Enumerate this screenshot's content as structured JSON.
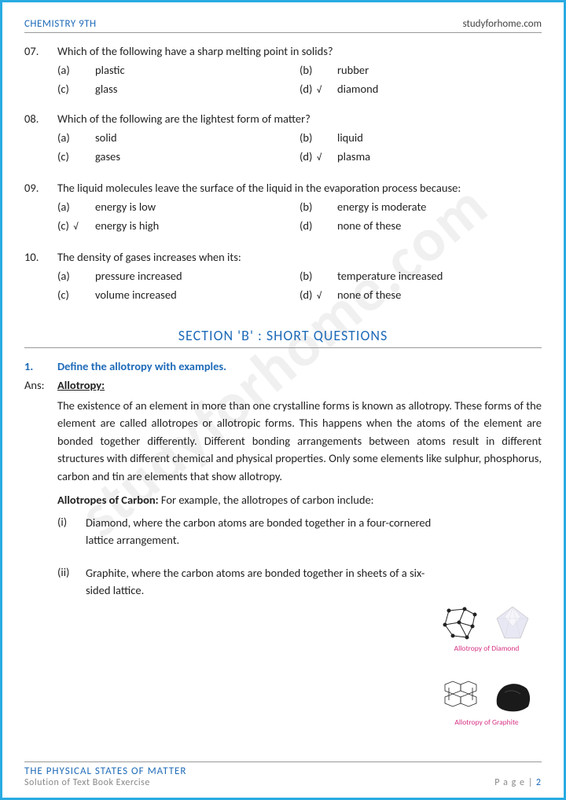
{
  "colors": {
    "accent": "#1f6bb8",
    "border": "#29abe2",
    "text": "#222222",
    "muted": "#888888",
    "caption": "#d63384",
    "rule": "#999999",
    "watermark": "rgba(128,128,128,0.12)"
  },
  "typography": {
    "body_size_pt": 11,
    "section_title_size_pt": 14,
    "watermark_size_pt": 60
  },
  "header": {
    "left": "CHEMISTRY 9TH",
    "right": "studyforhome.com"
  },
  "watermark": "studyforhome.com",
  "mcqs": [
    {
      "num": "07.",
      "q": "Which of the following have a sharp melting point in solids?",
      "opts": [
        {
          "l": "(a)",
          "t": "plastic",
          "c": false
        },
        {
          "l": "(b)",
          "t": "rubber",
          "c": false
        },
        {
          "l": "(c)",
          "t": "glass",
          "c": false
        },
        {
          "l": "(d)",
          "t": "diamond",
          "c": true
        }
      ]
    },
    {
      "num": "08.",
      "q": "Which of the following are the lightest form of matter?",
      "opts": [
        {
          "l": "(a)",
          "t": "solid",
          "c": false
        },
        {
          "l": "(b)",
          "t": "liquid",
          "c": false
        },
        {
          "l": "(c)",
          "t": "gases",
          "c": false
        },
        {
          "l": "(d)",
          "t": "plasma",
          "c": true
        }
      ]
    },
    {
      "num": "09.",
      "q": "The liquid molecules leave the surface of the liquid in the evaporation process because:",
      "opts": [
        {
          "l": "(a)",
          "t": "energy is low",
          "c": false
        },
        {
          "l": "(b)",
          "t": "energy is moderate",
          "c": false
        },
        {
          "l": "(c)",
          "t": "energy is high",
          "c": true
        },
        {
          "l": "(d)",
          "t": "none of these",
          "c": false
        }
      ]
    },
    {
      "num": "10.",
      "q": "The density of gases increases when its:",
      "opts": [
        {
          "l": "(a)",
          "t": "pressure increased",
          "c": false
        },
        {
          "l": "(b)",
          "t": "temperature increased",
          "c": false
        },
        {
          "l": "(c)",
          "t": "volume increased",
          "c": false
        },
        {
          "l": "(d)",
          "t": "none of these",
          "c": true
        }
      ]
    }
  ],
  "section_b_title": "SECTION 'B' : SHORT QUESTIONS",
  "short_q": {
    "num": "1.",
    "title": "Define the allotropy with examples.",
    "ans_label": "Ans:",
    "heading": "Allotropy:",
    "body": "The existence of an element in more than one crystalline forms is known as allotropy. These forms of the element are called allotropes or allotropic forms. This happens when the atoms of the element are bonded together differently. Different bonding arrangements between atoms result in different structures with different chemical and physical properties. Only some elements like sulphur, phosphorus, carbon and tin are elements that show allotropy.",
    "sub_heading": "Allotropes of Carbon:",
    "sub_heading_tail": "  For example, the allotropes of carbon include:",
    "examples": [
      {
        "n": "(i)",
        "t": "Diamond, where the carbon atoms are bonded together in a four-cornered lattice arrangement.",
        "caption": "Allotropy of Diamond",
        "img_type": "diamond"
      },
      {
        "n": "(ii)",
        "t": "Graphite, where the carbon atoms are bonded together in sheets of a six-sided lattice.",
        "caption": "Allotropy of Graphite",
        "img_type": "graphite"
      }
    ]
  },
  "footer": {
    "title": "THE PHYSICAL STATES OF MATTER",
    "sub": "Solution of Text Book Exercise",
    "page_label": "P a g e  | ",
    "page_num": "2"
  },
  "tick_glyph": "√"
}
